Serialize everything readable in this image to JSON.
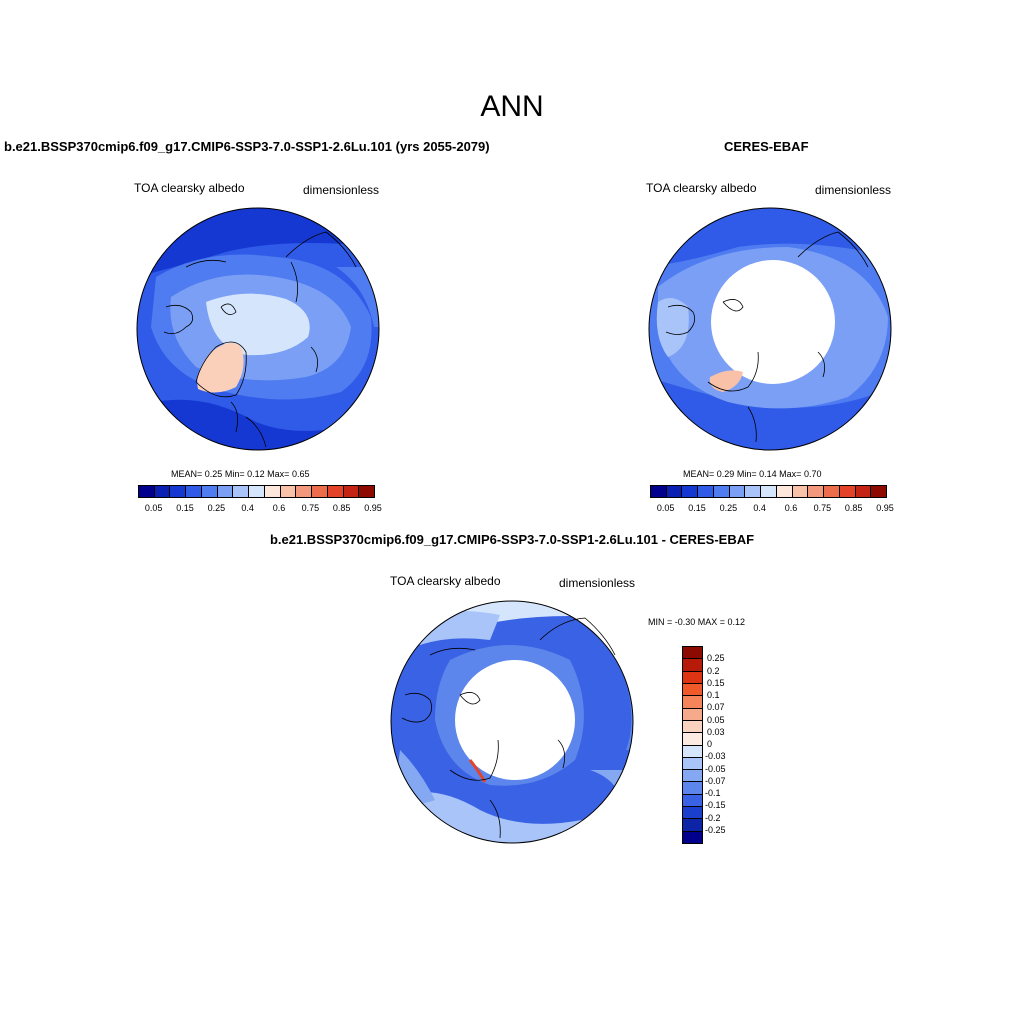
{
  "main_title": "ANN",
  "panels": [
    {
      "title": "b.e21.BSSP370cmip6.f09_g17.CMIP6-SSP3-7.0-SSP1-2.6Lu.101 (yrs 2055-2079)",
      "variable": "TOA clearsky albedo",
      "units": "dimensionless",
      "stats": {
        "mean_label": "MEAN=",
        "mean": "0.25",
        "min_label": "Min=",
        "min": "0.12",
        "max_label": "Max=",
        "max": "0.65"
      }
    },
    {
      "title": "CERES-EBAF",
      "variable": "TOA clearsky albedo",
      "units": "dimensionless",
      "stats": {
        "mean_label": "MEAN=",
        "mean": "0.29",
        "min_label": "Min=",
        "min": "0.14",
        "max_label": "Max=",
        "max": "0.70"
      }
    },
    {
      "title": "b.e21.BSSP370cmip6.f09_g17.CMIP6-SSP3-7.0-SSP1-2.6Lu.101 - CERES-EBAF",
      "variable": "TOA clearsky albedo",
      "units": "dimensionless",
      "minmax_text": "MIN =  -0.30 MAX =   0.12"
    }
  ],
  "albedo_colorbar": {
    "colors": [
      "#00008c",
      "#0a1fb4",
      "#1638d2",
      "#2f5be8",
      "#4f7cf0",
      "#7a9ff4",
      "#a9c4f8",
      "#d5e6fc",
      "#fde7dc",
      "#f8c1a8",
      "#f3987a",
      "#ed6c4c",
      "#e4432a",
      "#c42414",
      "#8c0a00"
    ],
    "ticks": [
      "0.05",
      "0.15",
      "0.25",
      "0.4",
      "0.6",
      "0.75",
      "0.85",
      "0.95"
    ]
  },
  "diff_colorbar": {
    "colors": [
      "#8c0a00",
      "#b81a0a",
      "#dd3414",
      "#f05a2a",
      "#f5845a",
      "#f7a98c",
      "#fad3c0",
      "#fdebe1",
      "#d5e6fc",
      "#a9c4f8",
      "#85a8f2",
      "#5d86ec",
      "#3a62e4",
      "#1b3fcd",
      "#0e24a6",
      "#00008c"
    ],
    "ticks": [
      "0.25",
      "0.2",
      "0.15",
      "0.1",
      "0.07",
      "0.05",
      "0.03",
      "0",
      "-0.03",
      "-0.05",
      "-0.07",
      "-0.1",
      "-0.15",
      "-0.2",
      "-0.25"
    ]
  }
}
